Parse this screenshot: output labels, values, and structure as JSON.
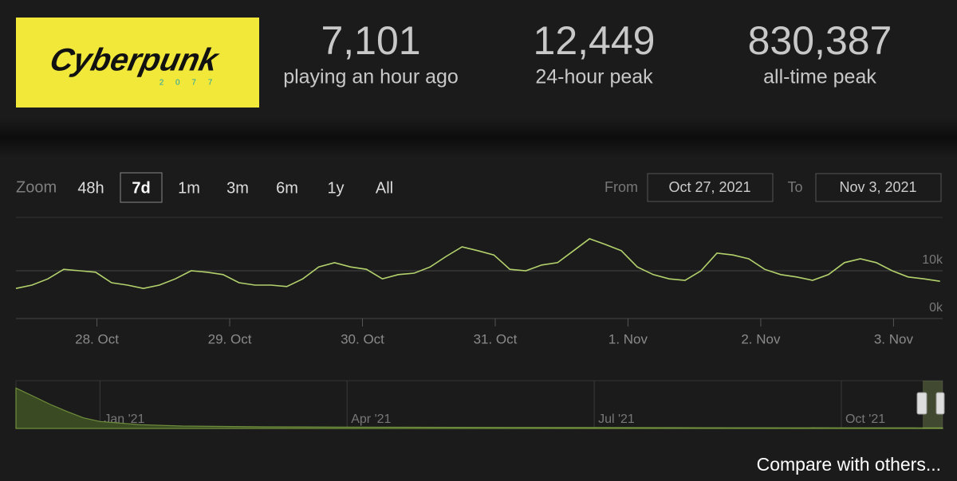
{
  "header": {
    "logo": {
      "title": "Cyberpunk",
      "subtitle": "2 0 7 7"
    },
    "stats": [
      {
        "value": "7,101",
        "label": "playing an hour ago"
      },
      {
        "value": "12,449",
        "label": "24-hour peak"
      },
      {
        "value": "830,387",
        "label": "all-time peak"
      }
    ]
  },
  "controls": {
    "zoom_label": "Zoom",
    "zoom_options": [
      "48h",
      "7d",
      "1m",
      "3m",
      "6m",
      "1y",
      "All"
    ],
    "active_zoom": "7d",
    "from_label": "From",
    "from_date": "Oct 27, 2021",
    "to_label": "To",
    "to_date": "Nov 3, 2021"
  },
  "chart_data": [
    {
      "type": "line",
      "color": "#b3d26c",
      "x": [
        -0.61,
        -0.49,
        -0.37,
        -0.25,
        -0.13,
        -0.01,
        0.11,
        0.23,
        0.35,
        0.47,
        0.59,
        0.71,
        0.83,
        0.95,
        1.07,
        1.19,
        1.31,
        1.43,
        1.55,
        1.67,
        1.79,
        1.91,
        2.03,
        2.15,
        2.27,
        2.39,
        2.51,
        2.63,
        2.75,
        2.87,
        2.99,
        3.11,
        3.23,
        3.35,
        3.47,
        3.59,
        3.71,
        3.83,
        3.95,
        4.07,
        4.19,
        4.31,
        4.43,
        4.55,
        4.67,
        4.79,
        4.91,
        5.03,
        5.15,
        5.27,
        5.39,
        5.51,
        5.63,
        5.75,
        5.87,
        5.99,
        6.11,
        6.23,
        6.35
      ],
      "values": [
        6300,
        7000,
        8300,
        10300,
        10000,
        9700,
        7500,
        7000,
        6300,
        7000,
        8300,
        10000,
        9700,
        9200,
        7500,
        7000,
        7000,
        6700,
        8300,
        10800,
        11700,
        10800,
        10300,
        8300,
        9200,
        9500,
        10800,
        13000,
        15000,
        14200,
        13300,
        10300,
        10000,
        11200,
        11700,
        14200,
        16700,
        15500,
        14200,
        10800,
        9200,
        8300,
        8000,
        10000,
        13700,
        13300,
        12500,
        10300,
        9200,
        8700,
        8000,
        9200,
        11700,
        12500,
        11700,
        10000,
        8700,
        8300,
        7800
      ],
      "xlim": [
        -0.61,
        6.37
      ],
      "ylim": [
        0,
        21000
      ],
      "xticks": [
        {
          "value": 0,
          "label": "28. Oct"
        },
        {
          "value": 1,
          "label": "29. Oct"
        },
        {
          "value": 2,
          "label": "30. Oct"
        },
        {
          "value": 3,
          "label": "31. Oct"
        },
        {
          "value": 4,
          "label": "1. Nov"
        },
        {
          "value": 5,
          "label": "2. Nov"
        },
        {
          "value": 6,
          "label": "3. Nov"
        }
      ],
      "yticks": [
        {
          "value": 0,
          "label": "0k"
        },
        {
          "value": 10000,
          "label": "10k"
        }
      ],
      "grid": true
    },
    {
      "type": "area",
      "color": "#6f8f3c",
      "x": [
        -1.02,
        -0.8,
        -0.6,
        -0.4,
        -0.2,
        0,
        0.5,
        1,
        2,
        3,
        5,
        7,
        9,
        10,
        10.23
      ],
      "values": [
        760000,
        600000,
        450000,
        320000,
        200000,
        130000,
        70000,
        45000,
        30000,
        25000,
        20000,
        15000,
        12000,
        10000,
        9000
      ],
      "xlim": [
        -1.02,
        10.23
      ],
      "ylim": [
        0,
        900000
      ],
      "xticks": [
        {
          "value": 0,
          "label": "Jan '21"
        },
        {
          "value": 3,
          "label": "Apr '21"
        },
        {
          "value": 6,
          "label": "Jul '21"
        },
        {
          "value": 9,
          "label": "Oct '21"
        }
      ],
      "grid": true
    }
  ],
  "footer": {
    "compare_link": "Compare with others..."
  }
}
